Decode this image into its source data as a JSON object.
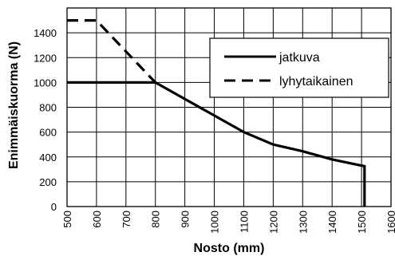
{
  "chart_data": {
    "type": "line",
    "title": "",
    "xlabel": "Nosto (mm)",
    "ylabel": "Enimmäiskuorma (N)",
    "xlim": [
      500,
      1600
    ],
    "ylim": [
      0,
      1600
    ],
    "grid": true,
    "legend_position": "top-right",
    "x_ticks": [
      "500",
      "600",
      "700",
      "800",
      "900",
      "1000",
      "1100",
      "1200",
      "1300",
      "1400",
      "1500",
      "1600"
    ],
    "y_ticks": [
      "0",
      "200",
      "400",
      "600",
      "800",
      "1000",
      "1200",
      "1400"
    ],
    "series": [
      {
        "name": "jatkuva",
        "style": "solid",
        "color": "#000000",
        "points": [
          {
            "x": 500,
            "y": 1000
          },
          {
            "x": 800,
            "y": 1000
          },
          {
            "x": 1100,
            "y": 600
          },
          {
            "x": 1200,
            "y": 500
          },
          {
            "x": 1300,
            "y": 445
          },
          {
            "x": 1400,
            "y": 380
          },
          {
            "x": 1510,
            "y": 325
          },
          {
            "x": 1510,
            "y": 0
          }
        ]
      },
      {
        "name": "lyhytaikainen",
        "style": "dashed",
        "color": "#000000",
        "points": [
          {
            "x": 500,
            "y": 1500
          },
          {
            "x": 600,
            "y": 1500
          },
          {
            "x": 800,
            "y": 1000
          }
        ]
      }
    ]
  }
}
